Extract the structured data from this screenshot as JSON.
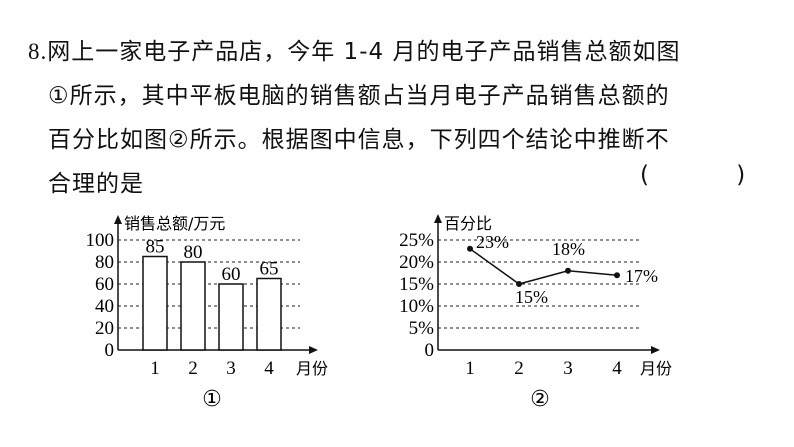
{
  "question": {
    "number": "8.",
    "line1": "网上一家电子产品店，今年 1-4 月的电子产品销售总额如图",
    "line2": "①所示，其中平板电脑的销售额占当月电子产品销售总额的",
    "line3": "百分比如图②所示。根据图中信息，下列四个结论中推断不",
    "line4": "合理的是",
    "answer_paren": "( )"
  },
  "chart_data": [
    {
      "type": "bar",
      "caption": "①",
      "ylabel": "销售总额/万元",
      "xlabel": "月份",
      "categories": [
        "1",
        "2",
        "3",
        "4"
      ],
      "values": [
        85,
        80,
        60,
        65
      ],
      "yticks": [
        "0",
        "20",
        "40",
        "60",
        "80",
        "100"
      ],
      "ylim": [
        0,
        100
      ],
      "grid": "dashed horizontal",
      "bar_color": "#ffffff"
    },
    {
      "type": "line",
      "caption": "②",
      "ylabel": "百分比",
      "xlabel": "月份",
      "categories": [
        "1",
        "2",
        "3",
        "4"
      ],
      "values": [
        23,
        15,
        18,
        17
      ],
      "value_labels": [
        "23%",
        "15%",
        "18%",
        "17%"
      ],
      "yticks": [
        "0",
        "5%",
        "10%",
        "15%",
        "20%",
        "25%"
      ],
      "ylim": [
        0,
        25
      ],
      "grid": "dashed horizontal"
    }
  ]
}
